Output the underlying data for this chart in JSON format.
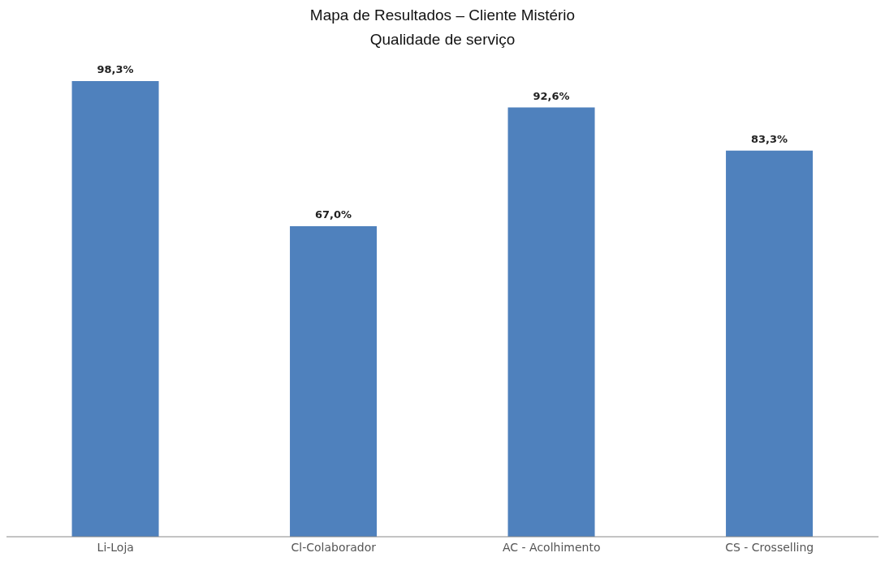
{
  "chart_data": {
    "type": "bar",
    "title": "Mapa de Resultados – Cliente Mistério",
    "subtitle": "Qualidade de serviço",
    "categories": [
      "Li-Loja",
      "Cl-Colaborador",
      "AC - Acolhimento",
      "CS - Crosselling"
    ],
    "values": [
      98.3,
      67.0,
      92.6,
      83.3
    ],
    "value_labels": [
      "98,3%",
      "67,0%",
      "92,6%",
      "83,3%"
    ],
    "color": "#4f81bd"
  }
}
